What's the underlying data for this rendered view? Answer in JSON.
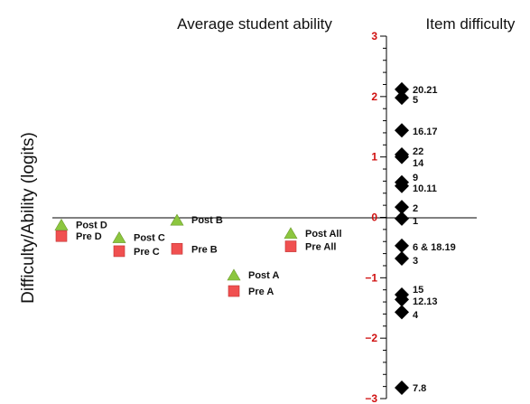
{
  "chart_data": {
    "type": "scatter",
    "titles": {
      "left": "Average student ability",
      "right": "Item difficulty"
    },
    "ylabel": "Difficulty/Ability (logits)",
    "ylim": [
      -3,
      3
    ],
    "yticks": [
      "3",
      "2",
      "1",
      "0",
      "−1",
      "−2",
      "−3"
    ],
    "tick_color": "#d01010",
    "post_color": "#8cc63f",
    "pre_color": "#f05050",
    "student_ability": [
      {
        "group": "D",
        "post_label": "Post D",
        "post": -0.12,
        "pre_label": "Pre D",
        "pre": -0.31
      },
      {
        "group": "C",
        "post_label": "Post C",
        "post": -0.33,
        "pre_label": "Pre C",
        "pre": -0.56
      },
      {
        "group": "B",
        "post_label": "Post B",
        "post": -0.04,
        "pre_label": "Pre B",
        "pre": -0.52
      },
      {
        "group": "A",
        "post_label": "Post A",
        "post": -0.95,
        "pre_label": "Pre A",
        "pre": -1.22
      },
      {
        "group": "All",
        "post_label": "Post All",
        "post": -0.26,
        "pre_label": "Pre All",
        "pre": -0.48
      }
    ],
    "item_difficulty": [
      {
        "label": "20.21",
        "items": [
          2.12,
          1.98
        ]
      },
      {
        "label": "5",
        "items": []
      },
      {
        "label": "16.17",
        "items": [
          1.44
        ]
      },
      {
        "label": "22",
        "items": [
          1.04,
          1.0
        ]
      },
      {
        "label": "14",
        "items": []
      },
      {
        "label": "9",
        "items": [
          0.58,
          0.52
        ]
      },
      {
        "label": "10.11",
        "items": []
      },
      {
        "label": "2",
        "items": [
          0.17
        ]
      },
      {
        "label": "1",
        "items": [
          -0.02
        ]
      },
      {
        "label": "6 & 18.19",
        "items": [
          -0.47
        ]
      },
      {
        "label": "3",
        "items": [
          -0.68
        ]
      },
      {
        "label": "15",
        "items": [
          -1.28,
          -1.36
        ]
      },
      {
        "label": "12.13",
        "items": []
      },
      {
        "label": "4",
        "items": [
          -1.57
        ]
      },
      {
        "label": "7.8",
        "items": [
          -2.82
        ]
      }
    ]
  }
}
